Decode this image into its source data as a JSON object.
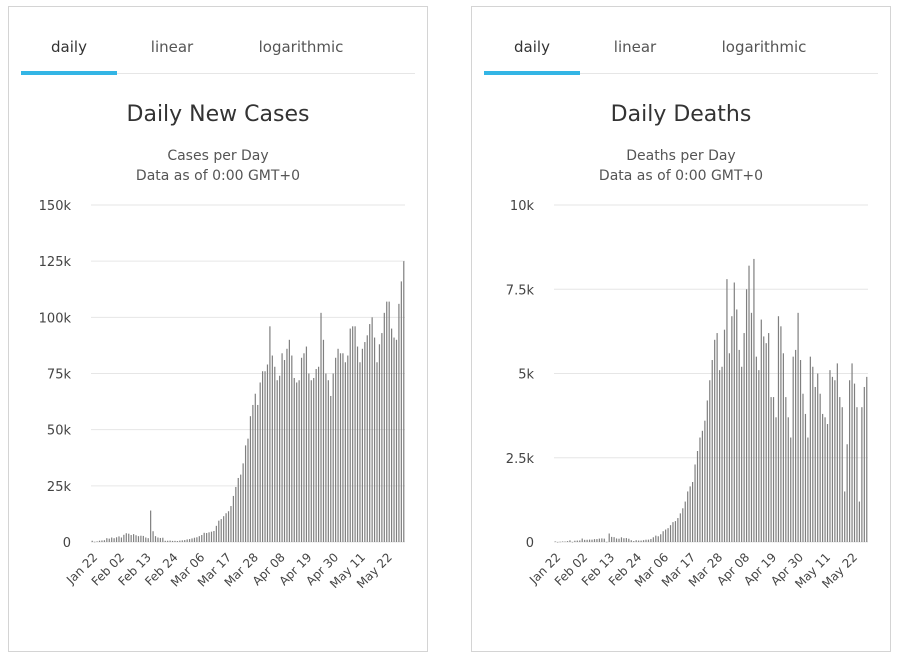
{
  "tabs": [
    {
      "label": "daily",
      "active": true
    },
    {
      "label": "linear",
      "active": false
    },
    {
      "label": "logarithmic",
      "active": false
    }
  ],
  "colors": {
    "accent": "#33b5e5",
    "bar": "#7f7f7f",
    "grid": "#e6e6e6",
    "text": "#333333"
  },
  "chart_data": [
    {
      "type": "bar",
      "title": "Daily New Cases",
      "subtitle": [
        "Cases per Day",
        "Data as of 0:00 GMT+0"
      ],
      "ylim": [
        0,
        150000
      ],
      "ytick_values": [
        0,
        25000,
        50000,
        75000,
        100000,
        125000,
        150000
      ],
      "ytick_labels": [
        "0",
        "25k",
        "50k",
        "75k",
        "100k",
        "125k",
        "150k"
      ],
      "xtick_labels": [
        "Jan 22",
        "Feb 02",
        "Feb 13",
        "Feb 24",
        "Mar 06",
        "Mar 17",
        "Mar 28",
        "Apr 08",
        "Apr 19",
        "Apr 30",
        "May 11",
        "May 22"
      ],
      "categories_start": "Jan 22",
      "values": [
        560,
        100,
        270,
        580,
        700,
        800,
        1700,
        1500,
        2000,
        1700,
        2100,
        2500,
        2000,
        3200,
        3900,
        3700,
        3100,
        3500,
        3000,
        2600,
        2800,
        2700,
        2000,
        1700,
        14000,
        4800,
        2600,
        2000,
        1800,
        1900,
        540,
        560,
        630,
        500,
        520,
        420,
        620,
        740,
        850,
        1150,
        1300,
        1600,
        1900,
        2100,
        2600,
        3100,
        4100,
        4000,
        4300,
        4600,
        4900,
        7200,
        9500,
        10200,
        11500,
        12800,
        13700,
        16000,
        20500,
        24500,
        28500,
        30000,
        35000,
        43000,
        46000,
        56000,
        61000,
        66000,
        61000,
        71000,
        76000,
        76000,
        79000,
        96000,
        83000,
        78000,
        72000,
        74000,
        84000,
        81000,
        86000,
        90000,
        83000,
        73000,
        71000,
        72000,
        82000,
        84000,
        87000,
        75000,
        72000,
        73000,
        77000,
        78000,
        102000,
        90000,
        75000,
        72000,
        65000,
        75000,
        82000,
        86000,
        84000,
        84000,
        80000,
        83000,
        95000,
        96000,
        96000,
        87000,
        80000,
        86000,
        89000,
        92000,
        97000,
        100000,
        91000,
        80000,
        88000,
        93000,
        102000,
        107000,
        107000,
        95000,
        91000,
        90000,
        106000,
        116000,
        125000
      ]
    },
    {
      "type": "bar",
      "title": "Daily Deaths",
      "subtitle": [
        "Deaths per Day",
        "Data as of 0:00 GMT+0"
      ],
      "ylim": [
        0,
        10000
      ],
      "ytick_values": [
        0,
        2500,
        5000,
        7500,
        10000
      ],
      "ytick_labels": [
        "0",
        "2.5k",
        "5k",
        "7.5k",
        "10k"
      ],
      "xtick_labels": [
        "Jan 22",
        "Feb 02",
        "Feb 13",
        "Feb 24",
        "Mar 06",
        "Mar 17",
        "Mar 28",
        "Apr 08",
        "Apr 19",
        "Apr 30",
        "May 11",
        "May 22"
      ],
      "categories_start": "Jan 22",
      "values": [
        17,
        0,
        8,
        16,
        14,
        26,
        49,
        2,
        38,
        42,
        46,
        103,
        64,
        66,
        72,
        70,
        85,
        87,
        100,
        107,
        100,
        5,
        252,
        152,
        143,
        105,
        98,
        139,
        112,
        117,
        97,
        52,
        28,
        53,
        43,
        43,
        55,
        68,
        70,
        90,
        140,
        190,
        170,
        230,
        320,
        370,
        410,
        500,
        590,
        620,
        710,
        850,
        1000,
        1200,
        1500,
        1650,
        1780,
        2300,
        2700,
        3100,
        3300,
        3600,
        4200,
        4800,
        5400,
        6000,
        6200,
        5100,
        5200,
        6300,
        7800,
        5600,
        6700,
        7700,
        6900,
        5700,
        5200,
        6200,
        7500,
        8200,
        6800,
        8400,
        5500,
        5100,
        6600,
        6100,
        5900,
        6200,
        4300,
        4300,
        3700,
        6700,
        6400,
        5600,
        4300,
        3700,
        3100,
        5500,
        5700,
        6800,
        5400,
        4400,
        3800,
        3100,
        5500,
        5200,
        4600,
        5000,
        4400,
        3800,
        3700,
        3500,
        5100,
        4900,
        4800,
        5300,
        4300,
        4000,
        1500,
        2900,
        4800,
        5300,
        4700,
        4000,
        1200,
        4000,
        4600,
        4900
      ]
    }
  ]
}
